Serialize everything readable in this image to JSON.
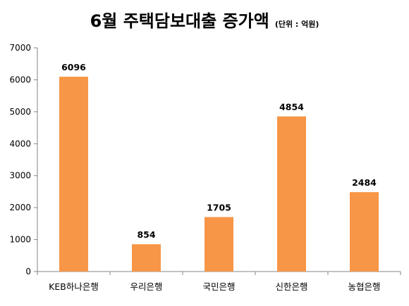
{
  "chart_data": {
    "type": "bar",
    "title": "6월 주택담보대출 증가액",
    "subtitle": "(단위 : 억원)",
    "categories": [
      "KEB하나은행",
      "우리은행",
      "국민은행",
      "신한은행",
      "농협은행"
    ],
    "values": [
      6096,
      854,
      1705,
      4854,
      2484
    ],
    "data_labels": [
      "6096",
      "854",
      "1705",
      "4854",
      "2484"
    ],
    "yticks": [
      "0",
      "1000",
      "2000",
      "3000",
      "4000",
      "5000",
      "6000",
      "7000"
    ],
    "ylim": [
      0,
      7000
    ],
    "bar_color": "#F79646",
    "grid": false,
    "legend": "none"
  }
}
